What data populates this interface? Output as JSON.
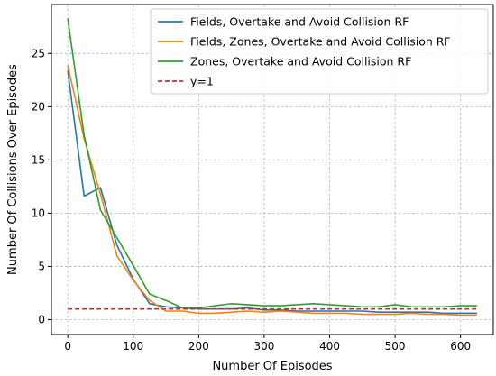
{
  "chart_data": {
    "type": "line",
    "title": "",
    "xlabel": "Number Of Episodes",
    "ylabel": "Number Of Collisions Over Episodes",
    "xlim": [
      -25,
      650
    ],
    "ylim": [
      -1.4,
      29.6
    ],
    "xticks": [
      0,
      100,
      200,
      300,
      400,
      500,
      600
    ],
    "yticks": [
      0,
      5,
      10,
      15,
      20,
      25
    ],
    "grid": true,
    "legend_position": "top-right",
    "x": [
      0,
      25,
      50,
      75,
      100,
      125,
      150,
      175,
      200,
      225,
      250,
      275,
      300,
      325,
      350,
      375,
      400,
      425,
      450,
      475,
      500,
      525,
      550,
      575,
      600,
      625
    ],
    "series": [
      {
        "name": "Fields, Overtake and Avoid Collision RF",
        "color": "#1f77b4",
        "dash": "solid",
        "values": [
          23.4,
          11.6,
          12.4,
          7.0,
          3.8,
          1.5,
          1.2,
          1.1,
          1.0,
          1.0,
          1.0,
          1.1,
          0.9,
          0.9,
          0.8,
          0.8,
          0.8,
          0.8,
          0.8,
          0.7,
          0.7,
          0.7,
          0.7,
          0.6,
          0.6,
          0.6
        ]
      },
      {
        "name": "Fields, Zones, Overtake and Avoid Collision RF",
        "color": "#ff7f0e",
        "dash": "solid",
        "values": [
          23.9,
          17.0,
          11.8,
          6.0,
          3.7,
          1.8,
          0.8,
          0.8,
          0.6,
          0.6,
          0.7,
          0.8,
          0.7,
          0.8,
          0.7,
          0.6,
          0.6,
          0.6,
          0.5,
          0.5,
          0.5,
          0.6,
          0.5,
          0.5,
          0.4,
          0.4
        ]
      },
      {
        "name": "Zones, Overtake and Avoid Collision RF",
        "color": "#2ca02c",
        "dash": "solid",
        "values": [
          28.3,
          17.3,
          10.3,
          7.7,
          5.1,
          2.4,
          1.8,
          1.1,
          1.1,
          1.3,
          1.5,
          1.4,
          1.3,
          1.3,
          1.4,
          1.5,
          1.4,
          1.3,
          1.2,
          1.2,
          1.4,
          1.2,
          1.2,
          1.2,
          1.3,
          1.3
        ]
      },
      {
        "name": "y=1",
        "color": "#d62728",
        "dash": "dashed",
        "values": [
          1,
          1,
          1,
          1,
          1,
          1,
          1,
          1,
          1,
          1,
          1,
          1,
          1,
          1,
          1,
          1,
          1,
          1,
          1,
          1,
          1,
          1,
          1,
          1,
          1,
          1
        ]
      }
    ]
  }
}
